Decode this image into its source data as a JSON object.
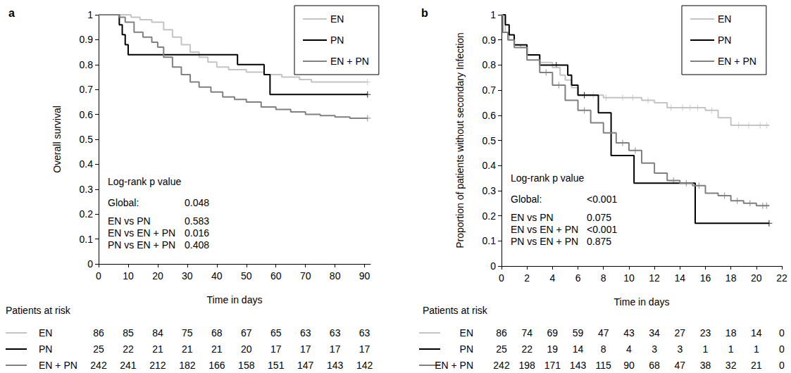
{
  "chart_data": [
    {
      "panel": "a",
      "type": "line",
      "line_style": "step",
      "marker": "plus",
      "x_label": "Time in days",
      "y_label": "Overall survival",
      "xlim": [
        0,
        92
      ],
      "xticks": [
        0,
        10,
        20,
        30,
        40,
        50,
        60,
        70,
        80,
        90
      ],
      "ylim": [
        0,
        1
      ],
      "yticks": [
        0,
        0.1,
        0.2,
        0.3,
        0.4,
        0.5,
        0.6,
        0.7,
        0.8,
        0.9,
        1
      ],
      "grid": false,
      "legend": "upper right",
      "series": [
        {
          "name": "EN",
          "color": "#c4c4c4",
          "x": [
            0,
            11,
            14,
            18,
            22,
            25,
            28,
            31,
            34,
            37,
            40,
            44,
            50,
            56,
            62,
            68,
            72,
            91
          ],
          "values": [
            1,
            0.99,
            0.98,
            0.97,
            0.94,
            0.91,
            0.88,
            0.85,
            0.83,
            0.81,
            0.79,
            0.78,
            0.77,
            0.76,
            0.75,
            0.74,
            0.73,
            0.73
          ],
          "censored_x": [
            91
          ],
          "censored_y": [
            0.73
          ]
        },
        {
          "name": "PN",
          "color": "#000000",
          "x": [
            0,
            7,
            8,
            9,
            10,
            47,
            56,
            58,
            91
          ],
          "values": [
            1,
            0.96,
            0.92,
            0.88,
            0.84,
            0.8,
            0.76,
            0.68,
            0.68
          ],
          "censored_x": [
            91
          ],
          "censored_y": [
            0.68
          ]
        },
        {
          "name": "EN + PN",
          "color": "#808080",
          "x": [
            0,
            7,
            9,
            12,
            15,
            18,
            20,
            22,
            25,
            28,
            31,
            34,
            38,
            42,
            46,
            50,
            55,
            60,
            65,
            70,
            75,
            80,
            85,
            91
          ],
          "values": [
            1,
            0.99,
            0.97,
            0.93,
            0.91,
            0.89,
            0.87,
            0.83,
            0.79,
            0.76,
            0.73,
            0.71,
            0.69,
            0.67,
            0.66,
            0.65,
            0.63,
            0.62,
            0.61,
            0.6,
            0.595,
            0.59,
            0.585,
            0.585
          ],
          "censored_x": [
            91
          ],
          "censored_y": [
            0.585
          ]
        }
      ],
      "annotation": {
        "title": "Log-rank p value",
        "rows": [
          {
            "label": "Global:",
            "p": "0.048"
          },
          {
            "label": "EN vs PN",
            "p": "0.583"
          },
          {
            "label": "EN vs EN + PN",
            "p": "0.016"
          },
          {
            "label": "PN vs EN + PN",
            "p": "0.408"
          }
        ]
      },
      "risk_table": {
        "title": "Patients at risk",
        "times": [
          0,
          10,
          20,
          30,
          40,
          50,
          60,
          70,
          80,
          90
        ],
        "rows": [
          {
            "name": "EN",
            "counts": [
              86,
              85,
              84,
              75,
              68,
              67,
              65,
              63,
              63,
              63
            ]
          },
          {
            "name": "PN",
            "counts": [
              25,
              22,
              21,
              21,
              21,
              20,
              17,
              17,
              17,
              17
            ]
          },
          {
            "name": "EN + PN",
            "counts": [
              242,
              241,
              212,
              182,
              166,
              158,
              151,
              147,
              143,
              142
            ]
          }
        ]
      }
    },
    {
      "panel": "b",
      "type": "line",
      "line_style": "step",
      "marker": "plus",
      "x_label": "Time in days",
      "y_label": "Proportion of patients without secondary Infection",
      "xlim": [
        0,
        22
      ],
      "xticks": [
        0,
        2,
        4,
        6,
        8,
        10,
        12,
        14,
        16,
        18,
        20,
        22
      ],
      "ylim": [
        0,
        1
      ],
      "yticks": [
        0,
        0.1,
        0.2,
        0.3,
        0.4,
        0.5,
        0.6,
        0.7,
        0.8,
        0.9,
        1
      ],
      "grid": false,
      "legend": "upper right",
      "series": [
        {
          "name": "EN",
          "color": "#c4c4c4",
          "x": [
            0,
            0.3,
            0.6,
            1,
            1.5,
            2,
            3,
            4,
            4.6,
            5,
            5.5,
            6,
            8,
            11,
            12,
            13,
            16,
            17,
            18,
            21
          ],
          "values": [
            1,
            0.93,
            0.9,
            0.88,
            0.87,
            0.84,
            0.81,
            0.79,
            0.76,
            0.74,
            0.71,
            0.68,
            0.67,
            0.66,
            0.65,
            0.63,
            0.62,
            0.59,
            0.56,
            0.56
          ],
          "censored_x": [
            7.2,
            8.2,
            9.5,
            10.3,
            11.5,
            13.3,
            14.2,
            14.8,
            15.4,
            16.5,
            18.6,
            19.4,
            20.3,
            20.8
          ],
          "censored_y": [
            0.68,
            0.67,
            0.67,
            0.67,
            0.66,
            0.63,
            0.63,
            0.63,
            0.63,
            0.62,
            0.56,
            0.56,
            0.56,
            0.56
          ]
        },
        {
          "name": "PN",
          "color": "#000000",
          "x": [
            0,
            0.3,
            0.6,
            1,
            2,
            3,
            5.2,
            5.5,
            6,
            7.6,
            8.6,
            10.4,
            15.2,
            21
          ],
          "values": [
            1,
            0.96,
            0.92,
            0.88,
            0.84,
            0.8,
            0.76,
            0.72,
            0.68,
            0.61,
            0.44,
            0.33,
            0.17,
            0.17
          ],
          "censored_x": [
            4.3,
            6.5,
            21
          ],
          "censored_y": [
            0.8,
            0.68,
            0.17
          ]
        },
        {
          "name": "EN + PN",
          "color": "#808080",
          "x": [
            0,
            0.1,
            0.5,
            1,
            2,
            3,
            4,
            5,
            6,
            7,
            8,
            9,
            10,
            11,
            12,
            13,
            14,
            15,
            16,
            17,
            18,
            19,
            20,
            21
          ],
          "values": [
            1,
            0.93,
            0.9,
            0.87,
            0.82,
            0.77,
            0.72,
            0.66,
            0.62,
            0.57,
            0.53,
            0.49,
            0.46,
            0.41,
            0.37,
            0.34,
            0.33,
            0.32,
            0.29,
            0.28,
            0.26,
            0.25,
            0.24,
            0.24
          ],
          "censored_x": [
            3.5,
            4.5,
            6.5,
            9.5,
            10.5,
            13.5,
            14.5,
            15.5,
            17.5,
            18.5,
            19.5,
            20.5,
            20.8
          ],
          "censored_y": [
            0.77,
            0.72,
            0.62,
            0.49,
            0.46,
            0.34,
            0.33,
            0.32,
            0.28,
            0.26,
            0.25,
            0.24,
            0.24
          ]
        }
      ],
      "annotation": {
        "title": "Log-rank p value",
        "rows": [
          {
            "label": "Global:",
            "p": "<0.001"
          },
          {
            "label": "EN vs PN",
            "p": "0.075"
          },
          {
            "label": "EN vs EN + PN",
            "p": "<0.001"
          },
          {
            "label": "PN vs EN + PN",
            "p": "0.875"
          }
        ]
      },
      "risk_table": {
        "title": "Patients at risk",
        "times": [
          0,
          2,
          4,
          6,
          8,
          10,
          12,
          14,
          16,
          18,
          20,
          22
        ],
        "rows": [
          {
            "name": "EN",
            "counts": [
              86,
              74,
              69,
              59,
              47,
              43,
              34,
              27,
              23,
              18,
              14,
              0
            ]
          },
          {
            "name": "PN",
            "counts": [
              25,
              22,
              19,
              14,
              8,
              4,
              3,
              3,
              1,
              1,
              1,
              0
            ]
          },
          {
            "name": "EN + PN",
            "counts": [
              242,
              198,
              171,
              143,
              115,
              90,
              68,
              47,
              38,
              32,
              21,
              0
            ]
          }
        ]
      }
    }
  ]
}
